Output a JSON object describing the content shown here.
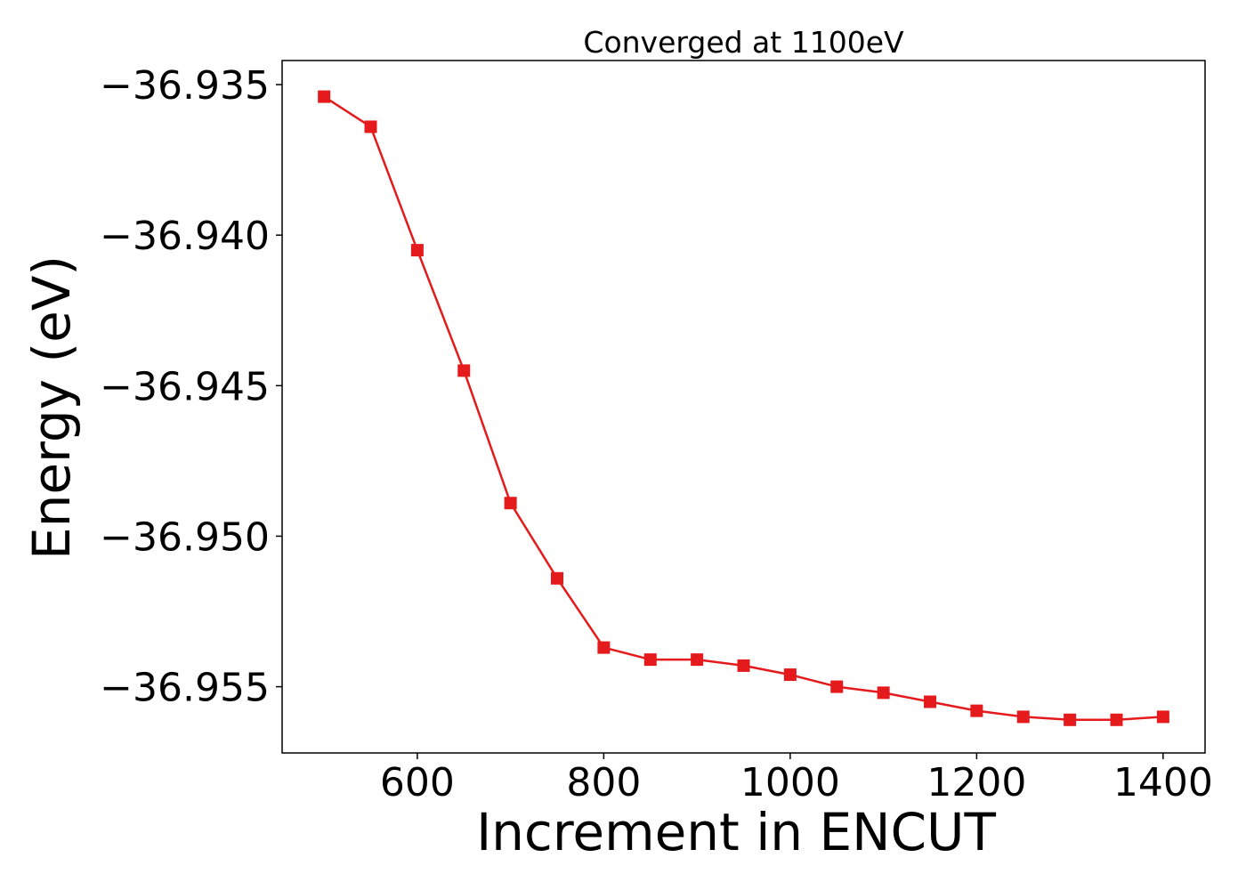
{
  "chart_data": {
    "type": "line",
    "title": "Converged at 1100eV",
    "xlabel": "Increment in ENCUT",
    "ylabel": "Energy (eV)",
    "xlim": [
      455,
      1445
    ],
    "ylim": [
      -36.9572,
      -36.9342
    ],
    "x_ticks": [
      600,
      800,
      1000,
      1200,
      1400
    ],
    "x_tick_labels": [
      "600",
      "800",
      "1000",
      "1200",
      "1400"
    ],
    "y_ticks": [
      -36.935,
      -36.94,
      -36.945,
      -36.95,
      -36.955
    ],
    "y_tick_labels": [
      "−36.935",
      "−36.940",
      "−36.945",
      "−36.950",
      "−36.955"
    ],
    "grid": false,
    "series": [
      {
        "color": "#e41a1c",
        "marker": "square",
        "x": [
          500,
          550,
          600,
          650,
          700,
          750,
          800,
          850,
          900,
          950,
          1000,
          1050,
          1100,
          1150,
          1200,
          1250,
          1300,
          1350,
          1400
        ],
        "y": [
          -36.9354,
          -36.9364,
          -36.9405,
          -36.9445,
          -36.9489,
          -36.9514,
          -36.9537,
          -36.9541,
          -36.9541,
          -36.9543,
          -36.9546,
          -36.955,
          -36.9552,
          -36.9555,
          -36.9558,
          -36.956,
          -36.9561,
          -36.9561,
          -36.956
        ]
      }
    ]
  }
}
